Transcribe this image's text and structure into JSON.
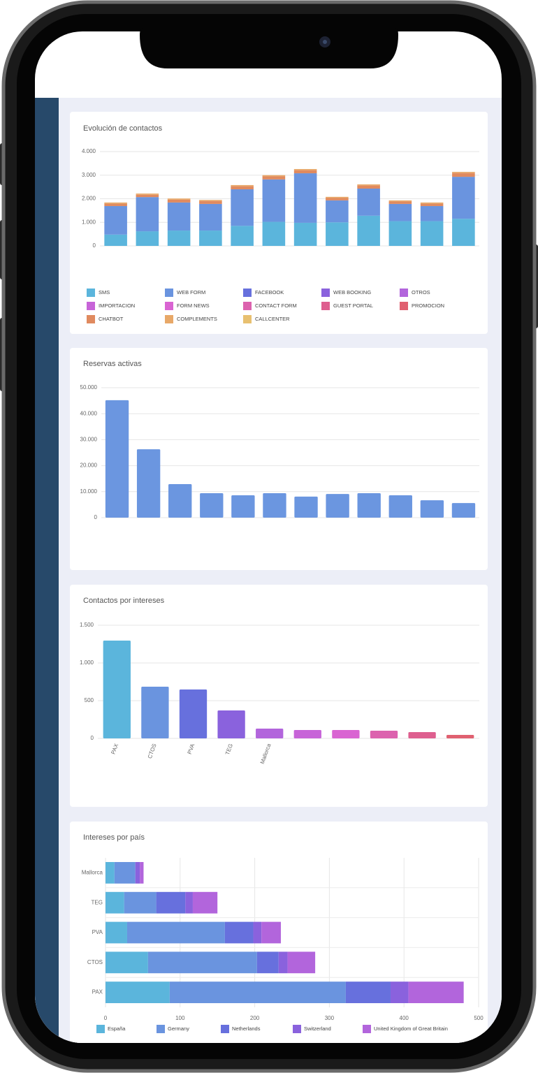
{
  "chart_data": [
    {
      "type": "stacked_bar",
      "title": "Evolución de contactos",
      "categories": [
        null,
        null,
        null,
        null,
        null,
        null,
        null,
        null,
        null,
        null,
        null,
        null
      ],
      "ylim": [
        0,
        4000
      ],
      "yticks": [
        0,
        {
          "value": 1000,
          "label": "1.000"
        },
        {
          "value": 2000,
          "label": "2.000"
        },
        {
          "value": 3000,
          "label": "3.000"
        },
        {
          "value": 4000,
          "label": "4.000"
        }
      ],
      "grid": true,
      "series": [
        {
          "name": "SMS",
          "color": "#5bb5dc",
          "values": [
            480,
            620,
            650,
            650,
            850,
            1020,
            980,
            1000,
            1280,
            1050,
            1050,
            1150
          ]
        },
        {
          "name": "WEB FORM",
          "color": "#6a94df",
          "values": [
            1210,
            1450,
            1190,
            1130,
            1550,
            1800,
            2100,
            930,
            1150,
            730,
            640,
            1780
          ]
        },
        {
          "name": "FACEBOOK",
          "color": "#6770dd",
          "values": [
            0,
            0,
            0,
            0,
            0,
            0,
            0,
            0,
            0,
            0,
            0,
            0
          ]
        },
        {
          "name": "WEB BOOKING",
          "color": "#8a62dd",
          "values": [
            0,
            0,
            0,
            0,
            0,
            0,
            0,
            0,
            0,
            0,
            0,
            0
          ]
        },
        {
          "name": "OTROS",
          "color": "#b265dc",
          "values": [
            0,
            0,
            0,
            0,
            0,
            0,
            0,
            0,
            0,
            0,
            0,
            0
          ]
        },
        {
          "name": "IMPORTACION",
          "color": "#c764d8",
          "values": [
            0,
            0,
            0,
            0,
            0,
            0,
            0,
            0,
            0,
            0,
            0,
            0
          ]
        },
        {
          "name": "FORM NEWS",
          "color": "#d964d2",
          "values": [
            0,
            0,
            0,
            0,
            0,
            0,
            0,
            0,
            0,
            0,
            0,
            0
          ]
        },
        {
          "name": "CONTACT FORM",
          "color": "#dc62ae",
          "values": [
            0,
            0,
            0,
            0,
            0,
            0,
            0,
            0,
            0,
            0,
            0,
            0
          ]
        },
        {
          "name": "GUEST PORTAL",
          "color": "#de5f8f",
          "values": [
            0,
            0,
            0,
            0,
            0,
            0,
            0,
            0,
            0,
            0,
            0,
            0
          ]
        },
        {
          "name": "PROMOCION",
          "color": "#e06070",
          "values": [
            0,
            0,
            0,
            0,
            0,
            0,
            0,
            0,
            0,
            0,
            0,
            0
          ]
        },
        {
          "name": "CHATBOT",
          "color": "#e08a5f",
          "values": [
            100,
            100,
            120,
            120,
            130,
            130,
            130,
            100,
            130,
            100,
            100,
            160
          ]
        },
        {
          "name": "COMPLEMENTS",
          "color": "#e8a868",
          "values": [
            50,
            50,
            50,
            50,
            50,
            50,
            50,
            50,
            50,
            50,
            50,
            50
          ]
        },
        {
          "name": "CALLCENTER",
          "color": "#e8c070",
          "values": [
            0,
            0,
            0,
            0,
            0,
            0,
            0,
            0,
            0,
            0,
            0,
            0
          ]
        }
      ]
    },
    {
      "type": "bar",
      "title": "Reservas activas",
      "categories": [
        null,
        null,
        null,
        null,
        null,
        null,
        null,
        null,
        null,
        null,
        null,
        null
      ],
      "values": [
        45200,
        26300,
        12900,
        9400,
        8600,
        9400,
        8100,
        9100,
        9400,
        8600,
        6700,
        5600
      ],
      "color": "#6b96e0",
      "ylim": [
        0,
        50000
      ],
      "yticks": [
        0,
        {
          "value": 10000,
          "label": "10.000"
        },
        {
          "value": 20000,
          "label": "20.000"
        },
        {
          "value": 30000,
          "label": "30.000"
        },
        {
          "value": 40000,
          "label": "40.000"
        },
        {
          "value": 50000,
          "label": "50.000"
        }
      ],
      "grid": true
    },
    {
      "type": "bar",
      "title": "Contactos por intereses",
      "categories": [
        "PAX",
        "CTOS",
        "PVA",
        "TEG",
        "Mallorca",
        null,
        null,
        null,
        null,
        null
      ],
      "values": [
        1296,
        685,
        648,
        370,
        130,
        111,
        111,
        102,
        83,
        46
      ],
      "colors": [
        "#5bb5dc",
        "#6a94df",
        "#6770dd",
        "#8a62dd",
        "#b265dc",
        "#c764d8",
        "#d964d2",
        "#dc62ae",
        "#de5f8f",
        "#e06070"
      ],
      "ylim": [
        0,
        1500
      ],
      "yticks": [
        0,
        500,
        {
          "value": 1000,
          "label": "1.000"
        },
        {
          "value": 1500,
          "label": "1.500"
        }
      ],
      "grid": true
    },
    {
      "type": "hbar",
      "title": "Intereses por país",
      "categories": [
        "Mallorca",
        "TEG",
        "PVA",
        "CTOS",
        "PAX"
      ],
      "xlim": [
        0,
        500
      ],
      "xticks": [
        0,
        100,
        200,
        300,
        400,
        500
      ],
      "grid": true,
      "series": [
        {
          "name": "España",
          "color": "#5bb5dc",
          "values": [
            12,
            25,
            29,
            57,
            86
          ]
        },
        {
          "name": "Germany",
          "color": "#6a94df",
          "values": [
            28,
            43,
            131,
            146,
            236
          ]
        },
        {
          "name": "Netherlands",
          "color": "#6770dd",
          "values": [
            0,
            39,
            38,
            29,
            60
          ]
        },
        {
          "name": "Switzerland",
          "color": "#8a62dd",
          "values": [
            6,
            10,
            11,
            12,
            24
          ]
        },
        {
          "name": "United Kingdom of Great Britain",
          "color": "#b265dc",
          "values": [
            5,
            33,
            26,
            37,
            74
          ]
        }
      ]
    }
  ]
}
